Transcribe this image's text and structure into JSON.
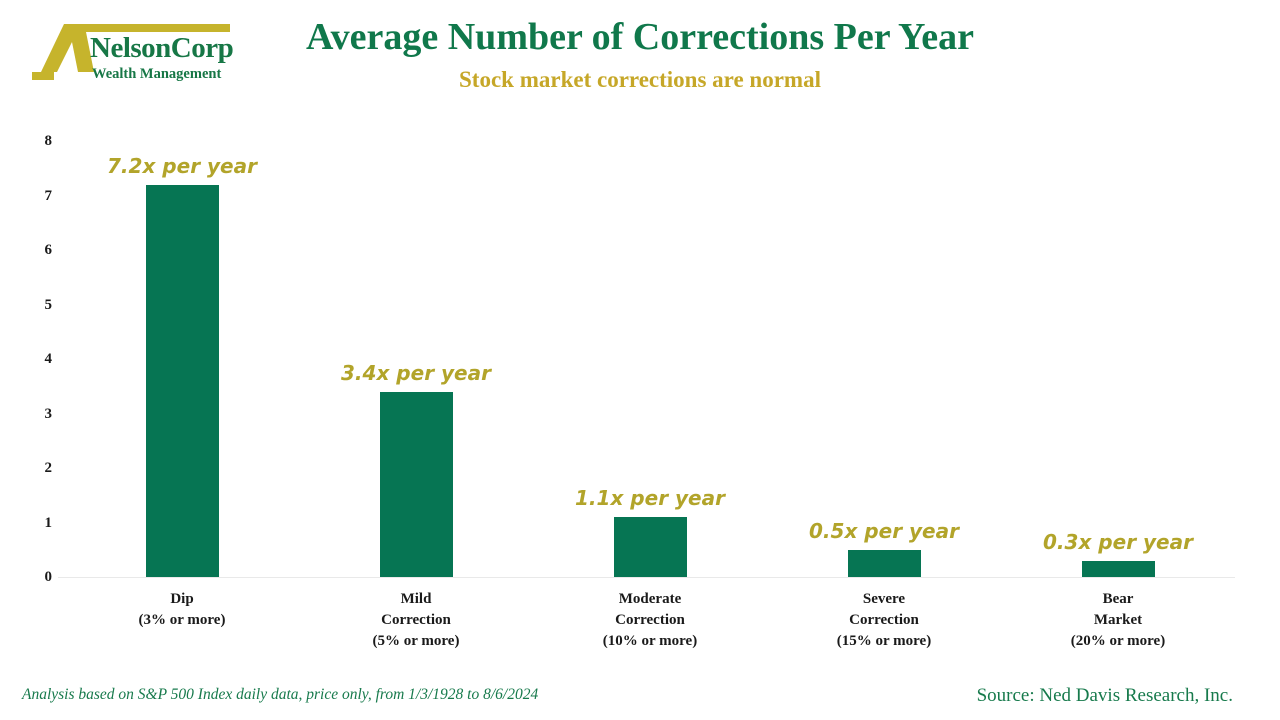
{
  "logo": {
    "name": "NelsonCorp",
    "tagline": "Wealth Management"
  },
  "header": {
    "title": "Average Number of Corrections Per Year",
    "subtitle": "Stock market corrections are normal"
  },
  "chart_data": {
    "type": "bar",
    "title": "Average Number of Corrections Per Year",
    "subtitle": "Stock market corrections are normal",
    "categories": [
      "Dip (3% or more)",
      "Mild Correction (5% or more)",
      "Moderate Correction (10% or more)",
      "Severe Correction (15% or more)",
      "Bear Market (20% or more)"
    ],
    "category_lines": [
      [
        "Dip",
        "(3% or more)"
      ],
      [
        "Mild",
        "Correction",
        "(5% or more)"
      ],
      [
        "Moderate",
        "Correction",
        "(10% or more)"
      ],
      [
        "Severe",
        "Correction",
        "(15% or more)"
      ],
      [
        "Bear",
        "Market",
        "(20% or more)"
      ]
    ],
    "values": [
      7.2,
      3.4,
      1.1,
      0.5,
      0.3
    ],
    "bar_labels": [
      "7.2x per year",
      "3.4x per year",
      "1.1x per year",
      "0.5x per year",
      "0.3x per year"
    ],
    "xlabel": "",
    "ylabel": "",
    "ylim": [
      0,
      8
    ],
    "yticks": [
      0,
      1,
      2,
      3,
      4,
      5,
      6,
      7,
      8
    ],
    "grid": false,
    "legend": "none",
    "bar_color": "#067553"
  },
  "footer": {
    "left": "Analysis based on S&P 500 Index daily data, price only, from 1/3/1928 to 8/6/2024",
    "right": "Source: Ned Davis Research, Inc."
  },
  "colors": {
    "title_green": "#10784b",
    "subtitle_gold": "#c6a728",
    "bar_green": "#067553",
    "value_label_gold": "#b2a42a",
    "logo_gold": "#c6b42c",
    "logo_green": "#177746",
    "axis_text": "#1a1a1a",
    "baseline_gray": "#e9e9e9"
  }
}
